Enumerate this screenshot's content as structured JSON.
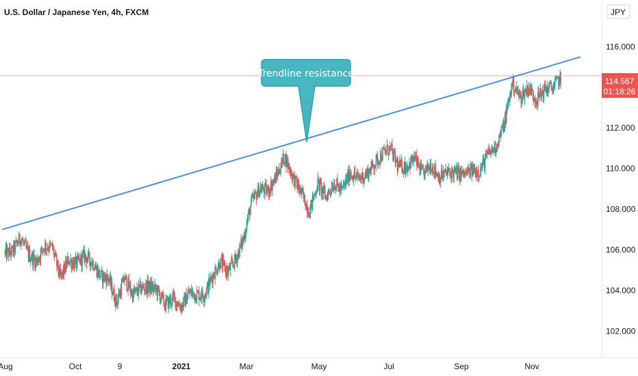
{
  "chart_data": {
    "type": "candlestick",
    "title": "U.S. Dollar / Japanese Yen, 4h, FXCM",
    "currency_badge": "JPY",
    "x_tick_labels": [
      "Aug",
      "Oct",
      "9",
      "2021",
      "Mar",
      "May",
      "Jul",
      "Sep",
      "Nov"
    ],
    "y_ticks": [
      102,
      104,
      106,
      108,
      110,
      112,
      116
    ],
    "y_tick_labels": [
      "102.000",
      "104.000",
      "106.000",
      "108.000",
      "110.000",
      "112.000",
      "116.000"
    ],
    "ylim": [
      100.7,
      118.3
    ],
    "last_price": "114.567",
    "countdown": "01:18:26",
    "colors": {
      "up": "#26a69a",
      "down": "#ef5350",
      "trendline": "#4a90e2",
      "callout_fill": "#48b6c0",
      "callout_stroke": "#2aa4ae",
      "price_label": "#ef5350",
      "price_line": "#f5a9a9"
    },
    "series": [
      {
        "values": [
          {
            "date": "2020-07-31",
            "close": 105.8
          },
          {
            "date": "2020-08-07",
            "close": 105.9
          },
          {
            "date": "2020-08-14",
            "close": 106.6
          },
          {
            "date": "2020-08-21",
            "close": 105.8
          },
          {
            "date": "2020-08-28",
            "close": 105.4
          },
          {
            "date": "2020-09-04",
            "close": 106.2
          },
          {
            "date": "2020-09-11",
            "close": 106.1
          },
          {
            "date": "2020-09-18",
            "close": 104.6
          },
          {
            "date": "2020-09-25",
            "close": 105.5
          },
          {
            "date": "2020-10-02",
            "close": 105.3
          },
          {
            "date": "2020-10-09",
            "close": 105.7
          },
          {
            "date": "2020-10-16",
            "close": 105.4
          },
          {
            "date": "2020-10-23",
            "close": 104.7
          },
          {
            "date": "2020-10-30",
            "close": 104.6
          },
          {
            "date": "2020-11-06",
            "close": 103.4
          },
          {
            "date": "2020-11-13",
            "close": 104.6
          },
          {
            "date": "2020-11-20",
            "close": 103.8
          },
          {
            "date": "2020-11-27",
            "close": 104.1
          },
          {
            "date": "2020-12-04",
            "close": 104.2
          },
          {
            "date": "2020-12-11",
            "close": 104.0
          },
          {
            "date": "2020-12-18",
            "close": 103.3
          },
          {
            "date": "2020-12-25",
            "close": 103.6
          },
          {
            "date": "2021-01-01",
            "close": 103.2
          },
          {
            "date": "2021-01-08",
            "close": 103.9
          },
          {
            "date": "2021-01-15",
            "close": 103.8
          },
          {
            "date": "2021-01-22",
            "close": 103.8
          },
          {
            "date": "2021-01-29",
            "close": 104.7
          },
          {
            "date": "2021-02-05",
            "close": 105.4
          },
          {
            "date": "2021-02-12",
            "close": 104.9
          },
          {
            "date": "2021-02-19",
            "close": 105.5
          },
          {
            "date": "2021-02-26",
            "close": 106.5
          },
          {
            "date": "2021-03-05",
            "close": 108.3
          },
          {
            "date": "2021-03-12",
            "close": 109.0
          },
          {
            "date": "2021-03-19",
            "close": 108.9
          },
          {
            "date": "2021-03-26",
            "close": 109.6
          },
          {
            "date": "2021-04-02",
            "close": 110.6
          },
          {
            "date": "2021-04-09",
            "close": 109.6
          },
          {
            "date": "2021-04-16",
            "close": 108.8
          },
          {
            "date": "2021-04-23",
            "close": 107.9
          },
          {
            "date": "2021-04-30",
            "close": 109.3
          },
          {
            "date": "2021-05-07",
            "close": 108.6
          },
          {
            "date": "2021-05-14",
            "close": 109.3
          },
          {
            "date": "2021-05-21",
            "close": 108.9
          },
          {
            "date": "2021-05-28",
            "close": 109.8
          },
          {
            "date": "2021-06-04",
            "close": 109.5
          },
          {
            "date": "2021-06-11",
            "close": 109.7
          },
          {
            "date": "2021-06-18",
            "close": 110.2
          },
          {
            "date": "2021-06-25",
            "close": 110.7
          },
          {
            "date": "2021-07-02",
            "close": 111.0
          },
          {
            "date": "2021-07-09",
            "close": 110.1
          },
          {
            "date": "2021-07-16",
            "close": 110.1
          },
          {
            "date": "2021-07-23",
            "close": 110.5
          },
          {
            "date": "2021-07-30",
            "close": 109.7
          },
          {
            "date": "2021-08-06",
            "close": 110.2
          },
          {
            "date": "2021-08-13",
            "close": 109.6
          },
          {
            "date": "2021-08-20",
            "close": 109.8
          },
          {
            "date": "2021-08-27",
            "close": 109.8
          },
          {
            "date": "2021-09-03",
            "close": 109.7
          },
          {
            "date": "2021-09-10",
            "close": 109.9
          },
          {
            "date": "2021-09-17",
            "close": 109.9
          },
          {
            "date": "2021-09-24",
            "close": 110.7
          },
          {
            "date": "2021-10-01",
            "close": 111.1
          },
          {
            "date": "2021-10-08",
            "close": 112.2
          },
          {
            "date": "2021-10-15",
            "close": 114.2
          },
          {
            "date": "2021-10-22",
            "close": 113.5
          },
          {
            "date": "2021-10-29",
            "close": 114.0
          },
          {
            "date": "2021-11-05",
            "close": 113.4
          },
          {
            "date": "2021-11-12",
            "close": 113.9
          },
          {
            "date": "2021-11-19",
            "close": 114.0
          },
          {
            "date": "2021-11-26",
            "close": 114.5
          }
        ]
      }
    ],
    "annotations": [
      {
        "type": "trendline",
        "label": "Trendline resistance",
        "points": [
          {
            "date": "2020-07-29",
            "value": 107.0
          },
          {
            "date": "2021-12-13",
            "value": 115.5
          }
        ]
      }
    ],
    "grid": false
  }
}
